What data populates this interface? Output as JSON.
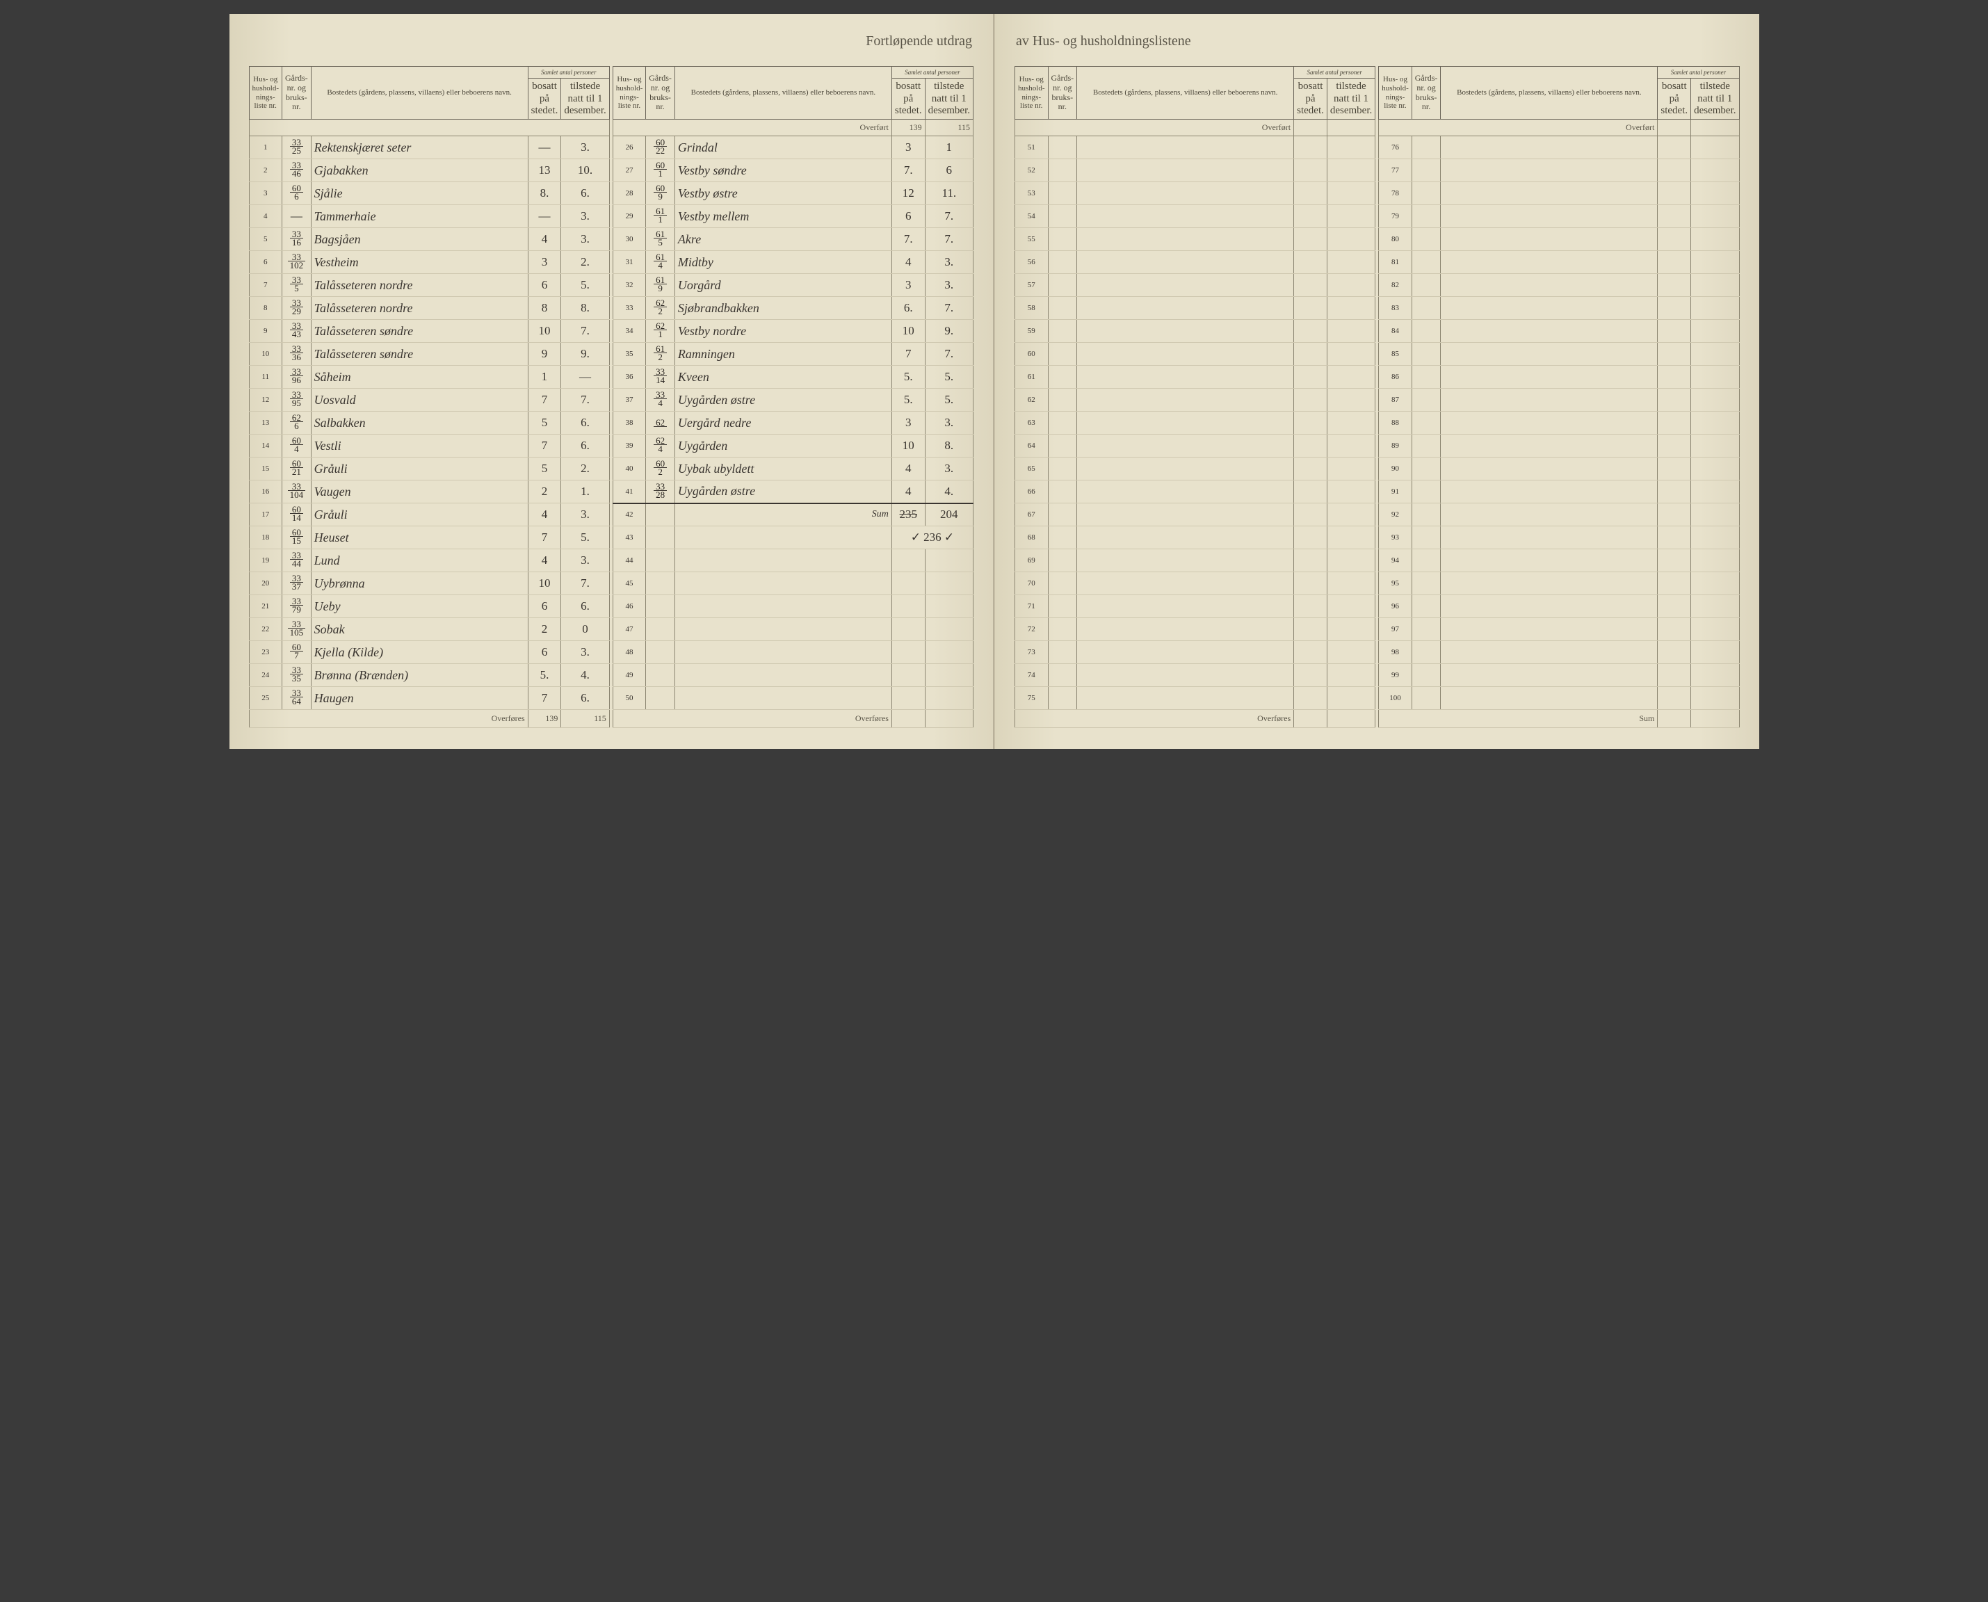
{
  "title_left": "Fortløpende utdrag",
  "title_right": "av Hus- og husholdningslistene",
  "headers": {
    "hus_nr": "Hus- og hushold-nings-liste nr.",
    "gards_nr": "Gårds-nr. og bruks-nr.",
    "bosted": "Bostedets (gårdens, plassens, villaens) eller beboerens navn.",
    "samlet": "Samlet antal personer",
    "bosatt": "bosatt på stedet.",
    "tilstede": "tilstede natt til 1 desember."
  },
  "overfort": "Overført",
  "overfores": "Overføres",
  "sum": "Sum",
  "col1": {
    "rows": [
      {
        "nr": "1",
        "gt": "33",
        "gb": "25",
        "name": "Rektenskjæret seter",
        "b": "—",
        "t": "3."
      },
      {
        "nr": "2",
        "gt": "33",
        "gb": "46",
        "name": "Gjabakken",
        "b": "13",
        "t": "10."
      },
      {
        "nr": "3",
        "gt": "60",
        "gb": "6",
        "name": "Sjålie",
        "b": "8.",
        "t": "6."
      },
      {
        "nr": "4",
        "gt": "—",
        "gb": "",
        "name": "Tammerhaie",
        "b": "—",
        "t": "3."
      },
      {
        "nr": "5",
        "gt": "33",
        "gb": "16",
        "name": "Bagsjåen",
        "b": "4",
        "t": "3."
      },
      {
        "nr": "6",
        "gt": "33",
        "gb": "102",
        "name": "Vestheim",
        "b": "3",
        "t": "2."
      },
      {
        "nr": "7",
        "gt": "33",
        "gb": "5",
        "name": "Talåsseteren nordre",
        "b": "6",
        "t": "5."
      },
      {
        "nr": "8",
        "gt": "33",
        "gb": "29",
        "name": "Talåsseteren nordre",
        "b": "8",
        "t": "8."
      },
      {
        "nr": "9",
        "gt": "33",
        "gb": "43",
        "name": "Talåsseteren søndre",
        "b": "10",
        "t": "7."
      },
      {
        "nr": "10",
        "gt": "33",
        "gb": "36",
        "name": "Talåsseteren søndre",
        "b": "9",
        "t": "9."
      },
      {
        "nr": "11",
        "gt": "33",
        "gb": "96",
        "name": "Såheim",
        "b": "1",
        "t": "—"
      },
      {
        "nr": "12",
        "gt": "33",
        "gb": "95",
        "name": "Uosvald",
        "b": "7",
        "t": "7."
      },
      {
        "nr": "13",
        "gt": "62",
        "gb": "6",
        "name": "Salbakken",
        "b": "5",
        "t": "6."
      },
      {
        "nr": "14",
        "gt": "60",
        "gb": "4",
        "name": "Vestli",
        "b": "7",
        "t": "6."
      },
      {
        "nr": "15",
        "gt": "60",
        "gb": "21",
        "name": "Gråuli",
        "b": "5",
        "t": "2."
      },
      {
        "nr": "16",
        "gt": "33",
        "gb": "104",
        "name": "Vaugen",
        "b": "2",
        "t": "1."
      },
      {
        "nr": "17",
        "gt": "60",
        "gb": "14",
        "name": "Gråuli",
        "b": "4",
        "t": "3."
      },
      {
        "nr": "18",
        "gt": "60",
        "gb": "15",
        "name": "Heuset",
        "b": "7",
        "t": "5."
      },
      {
        "nr": "19",
        "gt": "33",
        "gb": "44",
        "name": "Lund",
        "b": "4",
        "t": "3."
      },
      {
        "nr": "20",
        "gt": "33",
        "gb": "37",
        "name": "Uybrønna",
        "b": "10",
        "t": "7."
      },
      {
        "nr": "21",
        "gt": "33",
        "gb": "79",
        "name": "Ueby",
        "b": "6",
        "t": "6."
      },
      {
        "nr": "22",
        "gt": "33",
        "gb": "105",
        "name": "Sobak",
        "b": "2",
        "t": "0"
      },
      {
        "nr": "23",
        "gt": "60",
        "gb": "7",
        "name": "Kjella (Kilde)",
        "b": "6",
        "t": "3."
      },
      {
        "nr": "24",
        "gt": "33",
        "gb": "35",
        "name": "Brønna (Brænden)",
        "b": "5.",
        "t": "4."
      },
      {
        "nr": "25",
        "gt": "33",
        "gb": "64",
        "name": "Haugen",
        "b": "7",
        "t": "6."
      }
    ],
    "overfores_b": "139",
    "overfores_t": "115"
  },
  "col2": {
    "overfort_b": "139",
    "overfort_t": "115",
    "rows": [
      {
        "nr": "26",
        "gt": "60",
        "gb": "22",
        "name": "Grindal",
        "b": "3",
        "t": "1"
      },
      {
        "nr": "27",
        "gt": "60",
        "gb": "1",
        "name": "Vestby søndre",
        "b": "7.",
        "t": "6"
      },
      {
        "nr": "28",
        "gt": "60",
        "gb": "9",
        "name": "Vestby østre",
        "b": "12",
        "t": "11."
      },
      {
        "nr": "29",
        "gt": "61",
        "gb": "1",
        "name": "Vestby mellem",
        "b": "6",
        "t": "7."
      },
      {
        "nr": "30",
        "gt": "61",
        "gb": "5",
        "name": "Akre",
        "b": "7.",
        "t": "7."
      },
      {
        "nr": "31",
        "gt": "61",
        "gb": "4",
        "name": "Midtby",
        "b": "4",
        "t": "3."
      },
      {
        "nr": "32",
        "gt": "61",
        "gb": "9",
        "name": "Uorgård",
        "b": "3",
        "t": "3."
      },
      {
        "nr": "33",
        "gt": "62",
        "gb": "2",
        "name": "Sjøbrandbakken",
        "b": "6.",
        "t": "7."
      },
      {
        "nr": "34",
        "gt": "62",
        "gb": "1",
        "name": "Vestby nordre",
        "b": "10",
        "t": "9."
      },
      {
        "nr": "35",
        "gt": "61",
        "gb": "2",
        "name": "Ramningen",
        "b": "7",
        "t": "7."
      },
      {
        "nr": "36",
        "gt": "33",
        "gb": "14",
        "name": "Kveen",
        "b": "5.",
        "t": "5."
      },
      {
        "nr": "37",
        "gt": "33",
        "gb": "4",
        "name": "Uygården østre",
        "b": "5.",
        "t": "5."
      },
      {
        "nr": "38",
        "gt": "62",
        "gb": "",
        "name": "Uergård nedre",
        "b": "3",
        "t": "3."
      },
      {
        "nr": "39",
        "gt": "62",
        "gb": "4",
        "name": "Uygården",
        "b": "10",
        "t": "8."
      },
      {
        "nr": "40",
        "gt": "60",
        "gb": "2",
        "name": "Uybak ubyldett",
        "b": "4",
        "t": "3."
      },
      {
        "nr": "41",
        "gt": "33",
        "gb": "28",
        "name": "Uygården østre",
        "b": "4",
        "t": "4."
      }
    ],
    "sum_row": {
      "nr": "42",
      "name": "Sum",
      "b": "235",
      "t": "204"
    },
    "check_row": {
      "nr": "43",
      "text": "✓ 236 ✓"
    },
    "empty_from": 44,
    "empty_to": 50
  },
  "col3": {
    "empty_from": 51,
    "empty_to": 75
  },
  "col4": {
    "empty_from": 76,
    "empty_to": 100
  }
}
